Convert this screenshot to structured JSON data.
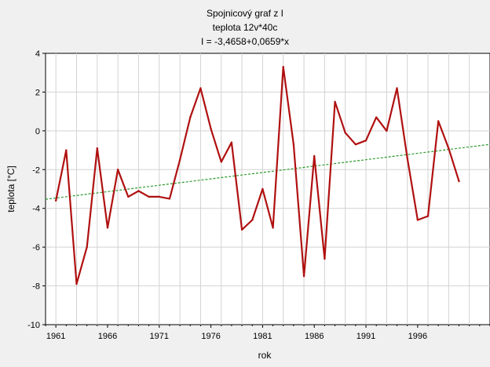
{
  "chart_data": {
    "type": "line",
    "title_lines": [
      "Spojnicový graf z I",
      "teplota 12v*40c",
      "I = -3,4658+0,0659*x"
    ],
    "xlabel": "rok",
    "ylabel": "teplota [°C]",
    "xlim": [
      1960,
      2003
    ],
    "ylim": [
      -10,
      4
    ],
    "x_ticks": [
      1961,
      1966,
      1971,
      1976,
      1981,
      1986,
      1991,
      1996
    ],
    "y_ticks": [
      -10,
      -8,
      -6,
      -4,
      -2,
      0,
      2,
      4
    ],
    "grid": true,
    "series": [
      {
        "color": "#b01010",
        "x": [
          1961,
          1962,
          1963,
          1964,
          1965,
          1966,
          1967,
          1968,
          1969,
          1970,
          1971,
          1972,
          1973,
          1974,
          1975,
          1976,
          1977,
          1978,
          1979,
          1980,
          1981,
          1982,
          1983,
          1984,
          1985,
          1986,
          1987,
          1988,
          1989,
          1990,
          1991,
          1992,
          1993,
          1994,
          1995,
          1996,
          1997,
          1998,
          1999,
          2000
        ],
        "values": [
          -3.6,
          -1.0,
          -7.9,
          -6.0,
          -0.9,
          -5.0,
          -2.0,
          -3.4,
          -3.1,
          -3.4,
          -3.4,
          -3.5,
          -1.5,
          0.7,
          2.2,
          0.1,
          -1.6,
          -0.6,
          -5.1,
          -4.6,
          -3.0,
          -5.0,
          3.3,
          -0.7,
          -7.5,
          -1.3,
          -6.6,
          1.5,
          -0.1,
          -0.7,
          -0.5,
          0.7,
          0.0,
          2.2,
          -1.4,
          -4.6,
          -4.4,
          0.5,
          -0.9,
          -2.6
        ]
      }
    ],
    "trendline": {
      "color": "#2a9a2a",
      "intercept": -3.4658,
      "slope": 0.0659,
      "x_start": 1960,
      "x_end": 2003,
      "x_origin": 1961
    }
  }
}
